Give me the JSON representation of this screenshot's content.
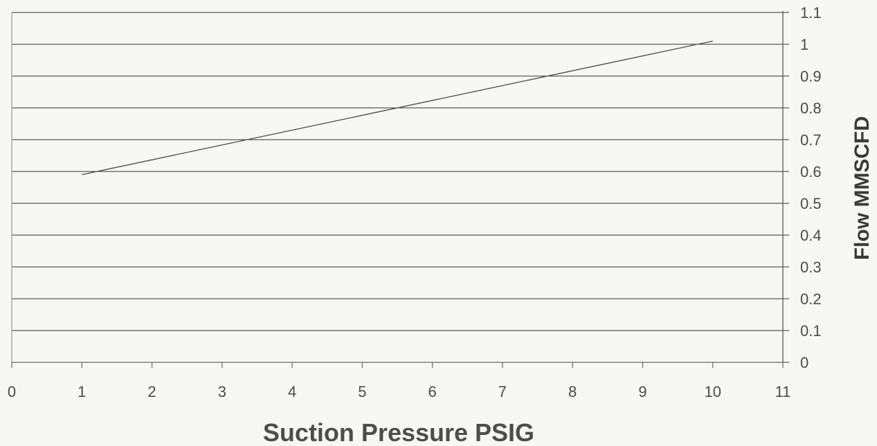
{
  "chart_data": {
    "type": "line",
    "xlabel": "Suction Pressure PSIG",
    "ylabel": "Flow MMSCFD",
    "xlim": [
      0,
      11
    ],
    "ylim": [
      0,
      1.1
    ],
    "x_ticks": [
      "0",
      "1",
      "2",
      "3",
      "4",
      "5",
      "6",
      "7",
      "8",
      "9",
      "10",
      "11"
    ],
    "y_ticks": [
      "0",
      "0.1",
      "0.2",
      "0.3",
      "0.4",
      "0.5",
      "0.6",
      "0.7",
      "0.8",
      "0.9",
      "1",
      "1.1"
    ],
    "y_axis_side": "right",
    "grid": true,
    "series": [
      {
        "x": [
          1,
          10
        ],
        "y": [
          0.59,
          1.01
        ],
        "color": "#555555"
      }
    ]
  }
}
